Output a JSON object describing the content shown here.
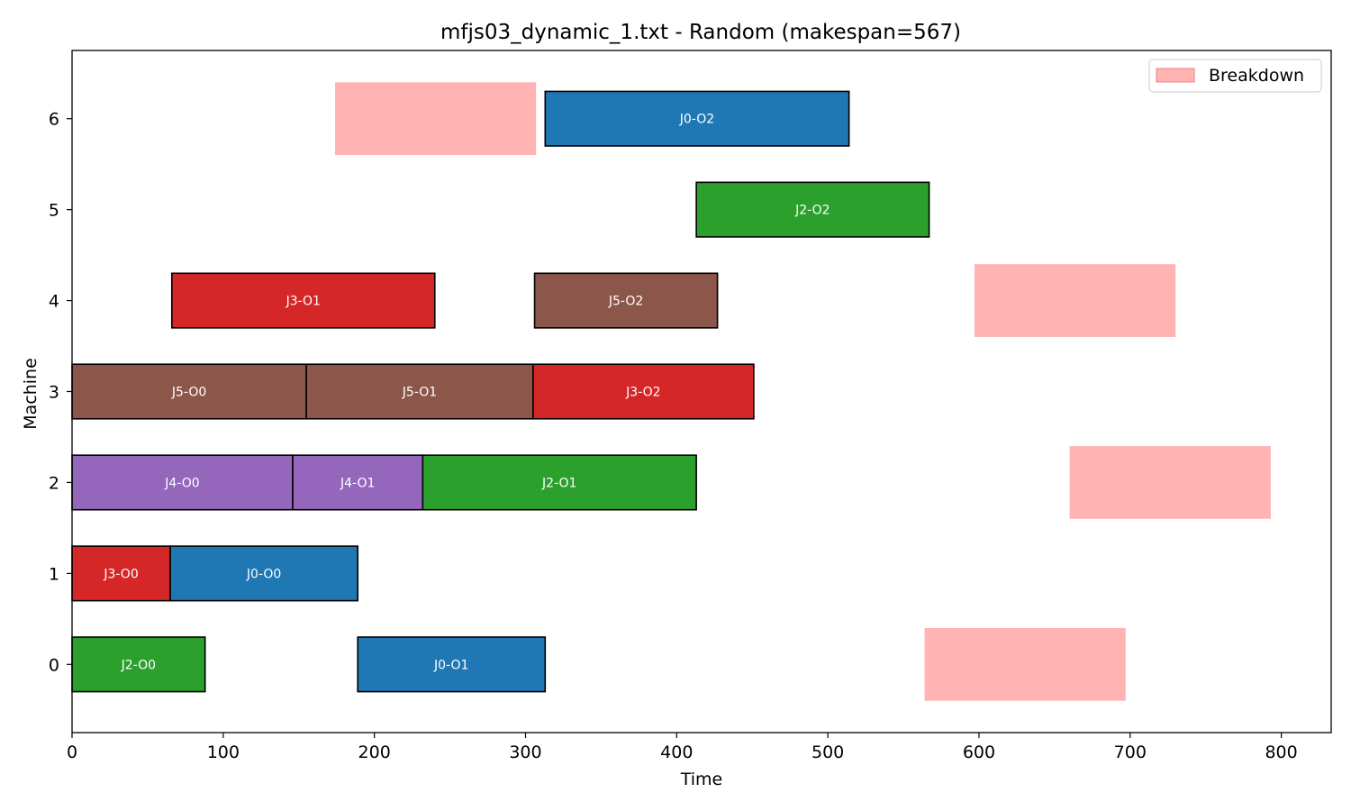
{
  "chart_data": {
    "type": "gantt",
    "title": "mfjs03_dynamic_1.txt - Random (makespan=567)",
    "xlabel": "Time",
    "ylabel": "Machine",
    "xlim": [
      0,
      833
    ],
    "ylim": [
      -0.75,
      6.75
    ],
    "xticks": [
      0,
      100,
      200,
      300,
      400,
      500,
      600,
      700,
      800
    ],
    "yticks": [
      0,
      1,
      2,
      3,
      4,
      5,
      6
    ],
    "grid": false,
    "legend": {
      "placement": "top-right",
      "entries": [
        {
          "label": "Breakdown",
          "color": "#ffb3b3"
        }
      ]
    },
    "job_colors": {
      "J0": "#1f77b4",
      "J2": "#2ca02c",
      "J3": "#d62728",
      "J4": "#9467bd",
      "J5": "#8c564b"
    },
    "operations": [
      {
        "machine": 0,
        "job": "J2",
        "label": "J2-O0",
        "start": 0,
        "end": 88
      },
      {
        "machine": 0,
        "job": "J0",
        "label": "J0-O1",
        "start": 189,
        "end": 313
      },
      {
        "machine": 1,
        "job": "J3",
        "label": "J3-O0",
        "start": 0,
        "end": 65
      },
      {
        "machine": 1,
        "job": "J0",
        "label": "J0-O0",
        "start": 65,
        "end": 189
      },
      {
        "machine": 2,
        "job": "J4",
        "label": "J4-O0",
        "start": 0,
        "end": 146
      },
      {
        "machine": 2,
        "job": "J4",
        "label": "J4-O1",
        "start": 146,
        "end": 232
      },
      {
        "machine": 2,
        "job": "J2",
        "label": "J2-O1",
        "start": 232,
        "end": 413
      },
      {
        "machine": 3,
        "job": "J5",
        "label": "J5-O0",
        "start": 0,
        "end": 155
      },
      {
        "machine": 3,
        "job": "J5",
        "label": "J5-O1",
        "start": 155,
        "end": 305
      },
      {
        "machine": 3,
        "job": "J3",
        "label": "J3-O2",
        "start": 305,
        "end": 451
      },
      {
        "machine": 4,
        "job": "J3",
        "label": "J3-O1",
        "start": 66,
        "end": 240
      },
      {
        "machine": 4,
        "job": "J5",
        "label": "J5-O2",
        "start": 306,
        "end": 427
      },
      {
        "machine": 5,
        "job": "J2",
        "label": "J2-O2",
        "start": 413,
        "end": 567
      },
      {
        "machine": 6,
        "job": "J0",
        "label": "J0-O2",
        "start": 313,
        "end": 514
      }
    ],
    "breakdowns": [
      {
        "machine": 0,
        "start": 564,
        "end": 697
      },
      {
        "machine": 2,
        "start": 660,
        "end": 793
      },
      {
        "machine": 4,
        "start": 597,
        "end": 730
      },
      {
        "machine": 6,
        "start": 174,
        "end": 307
      }
    ]
  }
}
